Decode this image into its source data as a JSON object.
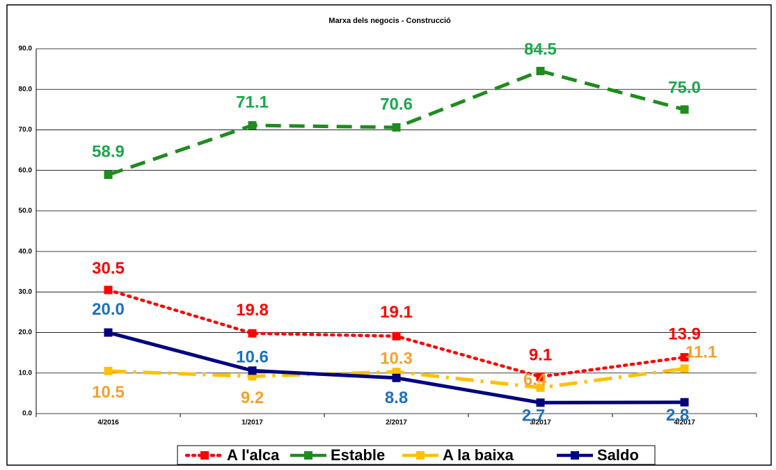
{
  "chart_data": {
    "type": "line",
    "title": "Marxa dels negocis - Construcció",
    "categories": [
      "4/2016",
      "1/2017",
      "2/2017",
      "3/2017",
      "4/2017"
    ],
    "series": [
      {
        "name": "A l'alca",
        "color": "#ff0000",
        "dash": "dotted",
        "label_color": "#ff0000",
        "values": [
          30.5,
          19.8,
          19.1,
          9.1,
          13.9
        ],
        "value_labels": [
          "30.5",
          "19.8",
          "19.1",
          "9.1",
          "13.9"
        ]
      },
      {
        "name": "Estable",
        "color": "#1e8c1e",
        "dash": "dashed",
        "label_color": "#1aa84a",
        "values": [
          58.9,
          71.1,
          70.6,
          84.5,
          75.0
        ],
        "value_labels": [
          "58.9",
          "71.1",
          "70.6",
          "84.5",
          "75.0"
        ]
      },
      {
        "name": "A la baixa",
        "color": "#ffc000",
        "dash": "dashdot",
        "label_color": "#f5a030",
        "values": [
          10.5,
          9.2,
          10.3,
          6.4,
          11.1
        ],
        "value_labels": [
          "10.5",
          "9.2",
          "10.3",
          "6.4",
          "11.1"
        ]
      },
      {
        "name": "Saldo",
        "color": "#000080",
        "dash": "solid",
        "label_color": "#1f6fbf",
        "values": [
          20.0,
          10.6,
          8.8,
          2.7,
          2.8
        ],
        "value_labels": [
          "20.0",
          "10.6",
          "8.8",
          "2.7",
          "2.8"
        ]
      }
    ],
    "ylim": [
      0,
      90
    ],
    "yticks": [
      {
        "value": 0,
        "label": "0.0"
      },
      {
        "value": 10,
        "label": "10.0"
      },
      {
        "value": 20,
        "label": "20.0"
      },
      {
        "value": 30,
        "label": "30.0"
      },
      {
        "value": 40,
        "label": "40.0"
      },
      {
        "value": 50,
        "label": "50.0"
      },
      {
        "value": 60,
        "label": "60.0"
      },
      {
        "value": 70,
        "label": "70.0"
      },
      {
        "value": 80,
        "label": "80.0"
      },
      {
        "value": 90,
        "label": "90.0"
      }
    ],
    "grid": true,
    "legend": "bottom"
  }
}
